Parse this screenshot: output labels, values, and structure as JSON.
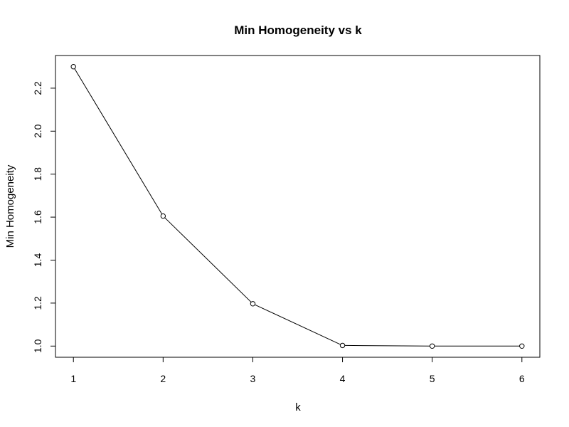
{
  "chart_data": {
    "type": "line",
    "title": "Min Homogeneity vs k",
    "xlabel": "k",
    "ylabel": "Min Homogeneity",
    "x": [
      1,
      2,
      3,
      4,
      5,
      6
    ],
    "series": [
      {
        "values": [
          2.3,
          1.605,
          1.197,
          1.003,
          1.0,
          1.0
        ]
      }
    ],
    "xticks": [
      "1",
      "2",
      "3",
      "4",
      "5",
      "6"
    ],
    "yticks": [
      "1.0",
      "1.2",
      "1.4",
      "1.6",
      "1.8",
      "2.0",
      "2.2"
    ],
    "xlim": [
      0.8,
      6.2
    ],
    "ylim": [
      0.948,
      2.352
    ],
    "markers": "open-circle",
    "line_color": "#000000",
    "grid": false,
    "legend": false
  }
}
